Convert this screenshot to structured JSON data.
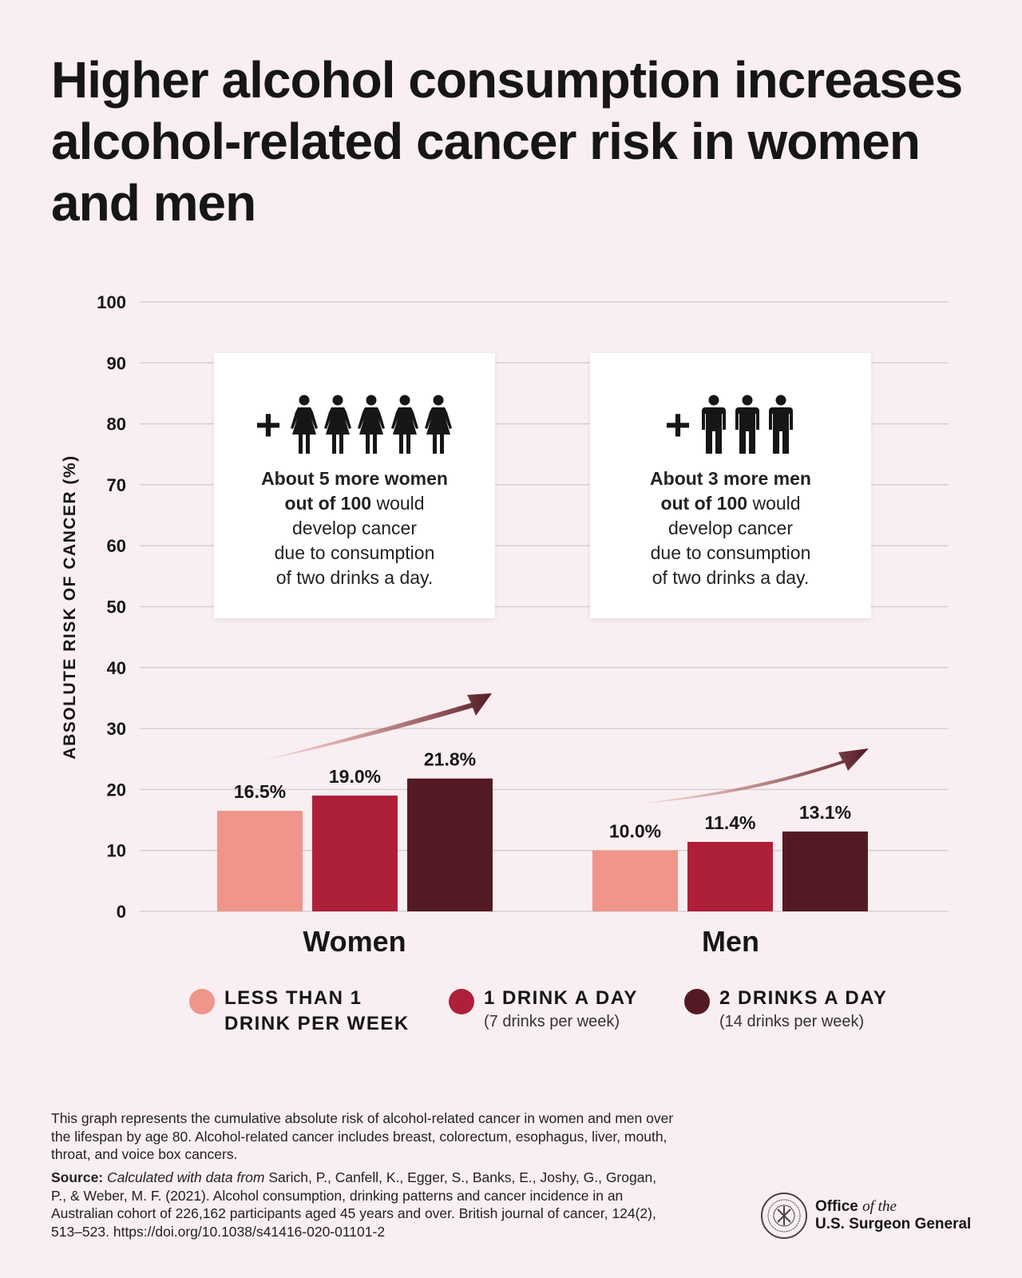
{
  "title": "Higher alcohol consumption increases alcohol-related cancer risk in women and men",
  "colors": {
    "background": "#f9eef1",
    "light": "#ef958a",
    "medium": "#ae1f3a",
    "dark": "#541a24"
  },
  "chart_data": {
    "type": "bar",
    "ylabel": "ABSOLUTE RISK OF CANCER (%)",
    "ylim": [
      0,
      100
    ],
    "yticks": [
      0,
      10,
      20,
      30,
      40,
      50,
      60,
      70,
      80,
      90,
      100
    ],
    "grid": true,
    "categories": [
      "Women",
      "Men"
    ],
    "series": [
      {
        "name": "LESS THAN 1 DRINK PER WEEK",
        "values": [
          16.5,
          10.0
        ],
        "labels": [
          "16.5%",
          "10.0%"
        ],
        "color": "#ef958a"
      },
      {
        "name": "1 DRINK A DAY",
        "note": "(7 drinks per week)",
        "values": [
          19.0,
          11.4
        ],
        "labels": [
          "19.0%",
          "11.4%"
        ],
        "color": "#ae1f3a"
      },
      {
        "name": "2 DRINKS A DAY",
        "note": "(14 drinks per week)",
        "values": [
          21.8,
          13.1
        ],
        "labels": [
          "21.8%",
          "13.1%"
        ],
        "color": "#541a24"
      }
    ],
    "legend": "bottom"
  },
  "callouts": [
    {
      "icon": "woman-figure-icon",
      "count": 5,
      "bold1": "About 5 more women",
      "bold2": "out of 100",
      "rest2": " would",
      "line3": "develop cancer",
      "line4": "due to consumption",
      "line5": "of two drinks a day."
    },
    {
      "icon": "man-figure-icon",
      "count": 3,
      "bold1": "About 3 more men",
      "bold2": "out of 100",
      "rest2": " would",
      "line3": "develop cancer",
      "line4": "due to consumption",
      "line5": "of two drinks a day."
    }
  ],
  "legend_items": [
    {
      "line1": "LESS THAN 1",
      "line2": "DRINK PER WEEK"
    },
    {
      "line1": "1 DRINK A DAY",
      "line2": "(7 drinks per week)"
    },
    {
      "line1": "2 DRINKS A DAY",
      "line2": "(14 drinks per week)"
    }
  ],
  "footnote": "This graph represents the cumulative absolute risk of alcohol-related cancer in women and men over the lifespan by age 80. Alcohol-related cancer includes breast, colorectum, esophagus, liver, mouth, throat, and voice box cancers.",
  "source": {
    "label": "Source:",
    "italic": "Calculated with data from",
    "text": " Sarich, P., Canfell, K., Egger, S., Banks, E., Joshy, G., Grogan, P., & Weber, M. F. (2021). Alcohol consumption, drinking patterns and cancer incidence in an Australian cohort of 226,162 participants aged 45 years and over. British journal of cancer, 124(2), 513–523. https://doi.org/10.1038/s41416-020-01101-2"
  },
  "logo": {
    "line1": "Office",
    "of_the": "of the",
    "line2": "U.S. Surgeon General"
  }
}
